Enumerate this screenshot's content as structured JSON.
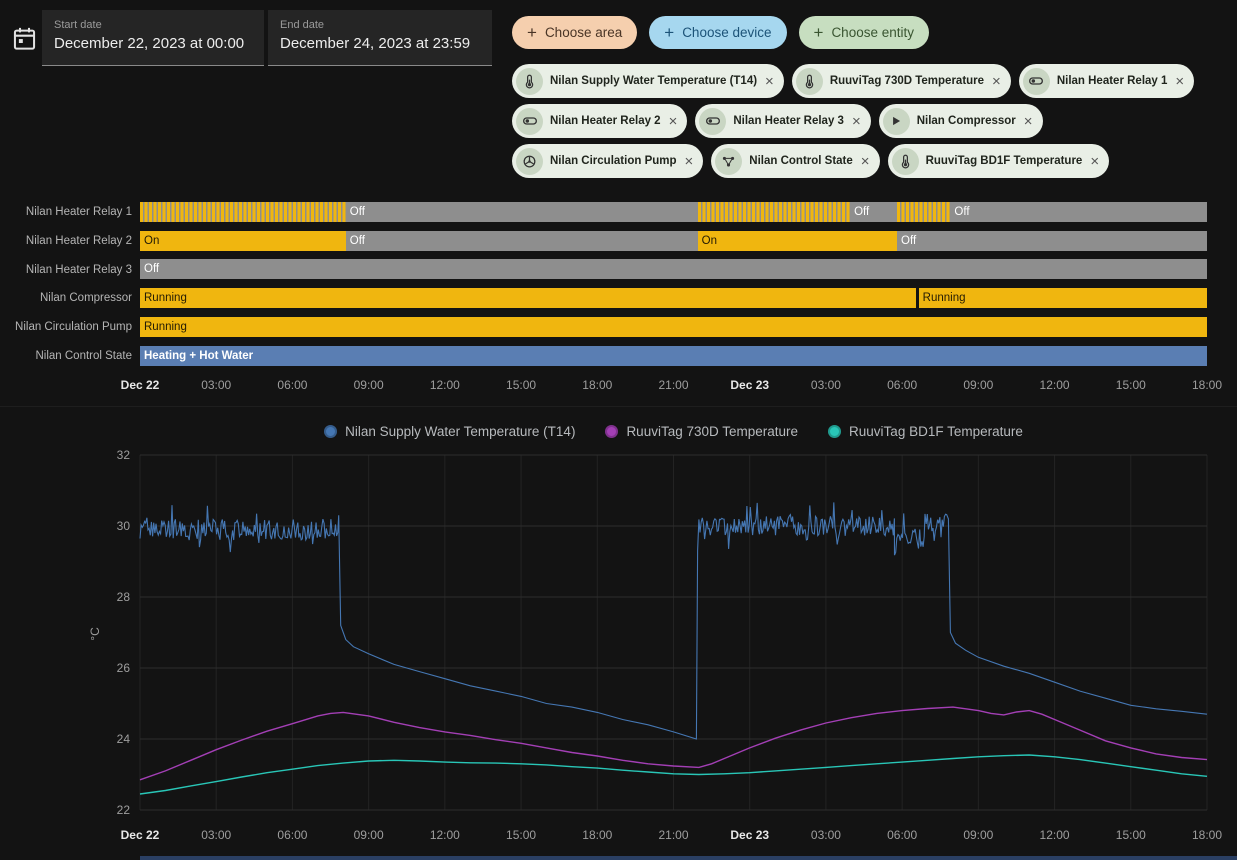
{
  "header": {
    "start_date": {
      "label": "Start date",
      "value": "December 22, 2023 at 00:00"
    },
    "end_date": {
      "label": "End date",
      "value": "December 24, 2023 at 23:59"
    },
    "choose_buttons": [
      {
        "label": "Choose area",
        "bg": "#f5cfae",
        "fg": "#4a3526"
      },
      {
        "label": "Choose device",
        "bg": "#a6d7ef",
        "fg": "#1c5378"
      },
      {
        "label": "Choose entity",
        "bg": "#c7dec0",
        "fg": "#3a5531"
      }
    ],
    "entity_chips": {
      "rows": [
        [
          {
            "label": "Nilan Supply Water Temperature (T14)",
            "icon": "thermometer"
          },
          {
            "label": "RuuviTag 730D Temperature",
            "icon": "thermometer"
          },
          {
            "label": "Nilan Heater Relay 1",
            "icon": "toggle"
          }
        ],
        [
          {
            "label": "Nilan Heater Relay 2",
            "icon": "toggle"
          },
          {
            "label": "Nilan Heater Relay 3",
            "icon": "toggle"
          },
          {
            "label": "Nilan Compressor",
            "icon": "play"
          }
        ],
        [
          {
            "label": "Nilan Circulation Pump",
            "icon": "pump"
          },
          {
            "label": "Nilan Control State",
            "icon": "state"
          },
          {
            "label": "RuuviTag BD1F Temperature",
            "icon": "thermometer"
          }
        ]
      ]
    }
  },
  "chart_data": [
    {
      "type": "timeline",
      "x_unit": "hours_from_2023-12-22_00:00",
      "x_range": [
        0,
        42
      ],
      "x_ticks": [
        {
          "h": 0,
          "label": "Dec 22",
          "emphasis": true
        },
        {
          "h": 3,
          "label": "03:00"
        },
        {
          "h": 6,
          "label": "06:00"
        },
        {
          "h": 9,
          "label": "09:00"
        },
        {
          "h": 12,
          "label": "12:00"
        },
        {
          "h": 15,
          "label": "15:00"
        },
        {
          "h": 18,
          "label": "18:00"
        },
        {
          "h": 21,
          "label": "21:00"
        },
        {
          "h": 24,
          "label": "Dec 23",
          "emphasis": true
        },
        {
          "h": 27,
          "label": "03:00"
        },
        {
          "h": 30,
          "label": "06:00"
        },
        {
          "h": 33,
          "label": "09:00"
        },
        {
          "h": 36,
          "label": "12:00"
        },
        {
          "h": 39,
          "label": "15:00"
        },
        {
          "h": 42,
          "label": "18:00"
        }
      ],
      "rows": [
        {
          "label": "Nilan Heater Relay 1",
          "segments": [
            {
              "from": 0,
              "to": 8.1,
              "state": "cycling"
            },
            {
              "from": 8.1,
              "to": 21.95,
              "state": "off",
              "label": "Off"
            },
            {
              "from": 21.95,
              "to": 27.95,
              "state": "cycling"
            },
            {
              "from": 27.95,
              "to": 29.8,
              "state": "off",
              "label": "Off"
            },
            {
              "from": 29.8,
              "to": 31.9,
              "state": "cycling"
            },
            {
              "from": 31.9,
              "to": 42,
              "state": "off",
              "label": "Off"
            }
          ]
        },
        {
          "label": "Nilan Heater Relay 2",
          "segments": [
            {
              "from": 0,
              "to": 8.1,
              "state": "on",
              "label": "On"
            },
            {
              "from": 8.1,
              "to": 21.95,
              "state": "off",
              "label": "Off"
            },
            {
              "from": 21.95,
              "to": 29.8,
              "state": "on",
              "label": "On"
            },
            {
              "from": 29.8,
              "to": 42,
              "state": "off",
              "label": "Off"
            }
          ]
        },
        {
          "label": "Nilan Heater Relay 3",
          "segments": [
            {
              "from": 0,
              "to": 42,
              "state": "off",
              "label": "Off"
            }
          ]
        },
        {
          "label": "Nilan Compressor",
          "segments": [
            {
              "from": 0,
              "to": 30.55,
              "state": "running",
              "label": "Running"
            },
            {
              "from": 30.65,
              "to": 42,
              "state": "running",
              "label": "Running"
            }
          ]
        },
        {
          "label": "Nilan Circulation Pump",
          "segments": [
            {
              "from": 0,
              "to": 42,
              "state": "running",
              "label": "Running"
            }
          ]
        },
        {
          "label": "Nilan Control State",
          "segments": [
            {
              "from": 0,
              "to": 42,
              "state": "heating_hot_water",
              "label": "Heating + Hot Water"
            }
          ]
        }
      ],
      "state_styles": {
        "on": {
          "color": "#f0b60f",
          "text": "#241c04"
        },
        "running": {
          "color": "#f0b60f",
          "text": "#241c04"
        },
        "off": {
          "color": "#8e8e8e",
          "text": "#ffffff"
        },
        "cycling": {
          "pattern": "stripes",
          "colors": [
            "#f0b60f",
            "#8e8e8e"
          ]
        },
        "heating_hot_water": {
          "color": "#5a7eb3",
          "text": "#ffffff"
        }
      }
    },
    {
      "type": "line",
      "ylabel": "°C",
      "ylim": [
        22,
        32
      ],
      "y_ticks": [
        22,
        24,
        26,
        28,
        30,
        32
      ],
      "x_range": [
        0,
        42
      ],
      "grid": true,
      "legend_position": "top",
      "x_ticks": [
        {
          "h": 0,
          "label": "Dec 22",
          "emphasis": true
        },
        {
          "h": 3,
          "label": "03:00"
        },
        {
          "h": 6,
          "label": "06:00"
        },
        {
          "h": 9,
          "label": "09:00"
        },
        {
          "h": 12,
          "label": "12:00"
        },
        {
          "h": 15,
          "label": "15:00"
        },
        {
          "h": 18,
          "label": "18:00"
        },
        {
          "h": 21,
          "label": "21:00"
        },
        {
          "h": 24,
          "label": "Dec 23",
          "emphasis": true
        },
        {
          "h": 27,
          "label": "03:00"
        },
        {
          "h": 30,
          "label": "06:00"
        },
        {
          "h": 33,
          "label": "09:00"
        },
        {
          "h": 36,
          "label": "12:00"
        },
        {
          "h": 39,
          "label": "15:00"
        },
        {
          "h": 42,
          "label": "18:00"
        }
      ],
      "series": [
        {
          "name": "Nilan Supply Water Temperature (T14)",
          "color": "#4577b3",
          "segments": [
            {
              "type": "noise",
              "from": 0,
              "to": 7.8,
              "base": 29.9,
              "amplitude": 0.3
            },
            {
              "type": "points",
              "pts": [
                [
                  7.82,
                  30.3
                ],
                [
                  7.9,
                  27.2
                ],
                [
                  8.1,
                  26.8
                ],
                [
                  8.4,
                  26.6
                ],
                [
                  9,
                  26.4
                ],
                [
                  10,
                  26.1
                ],
                [
                  11,
                  25.9
                ],
                [
                  12,
                  25.7
                ],
                [
                  13,
                  25.5
                ],
                [
                  14,
                  25.35
                ],
                [
                  15,
                  25.2
                ],
                [
                  16,
                  25.0
                ],
                [
                  17,
                  24.9
                ],
                [
                  18,
                  24.75
                ],
                [
                  19,
                  24.55
                ],
                [
                  20,
                  24.4
                ],
                [
                  21,
                  24.2
                ],
                [
                  21.9,
                  24.0
                ]
              ]
            },
            {
              "type": "points",
              "pts": [
                [
                  21.95,
                  29.3
                ]
              ]
            },
            {
              "type": "noise",
              "from": 22,
              "to": 29.7,
              "base": 30.0,
              "amplitude": 0.28
            },
            {
              "type": "noise",
              "from": 29.7,
              "to": 30.9,
              "base": 29.7,
              "amplitude": 0.3
            },
            {
              "type": "noise",
              "from": 30.9,
              "to": 31.8,
              "base": 30.1,
              "amplitude": 0.25
            },
            {
              "type": "points",
              "pts": [
                [
                  31.82,
                  30.2
                ],
                [
                  31.9,
                  27.0
                ],
                [
                  32.1,
                  26.7
                ],
                [
                  32.5,
                  26.5
                ],
                [
                  33,
                  26.3
                ],
                [
                  34,
                  26.05
                ],
                [
                  35,
                  25.85
                ],
                [
                  36,
                  25.6
                ],
                [
                  37,
                  25.35
                ],
                [
                  38,
                  25.15
                ],
                [
                  39,
                  24.95
                ],
                [
                  40,
                  24.85
                ],
                [
                  41,
                  24.78
                ],
                [
                  42,
                  24.7
                ]
              ]
            }
          ]
        },
        {
          "name": "RuuviTag 730D Temperature",
          "color": "#a33fb5",
          "segments": [
            {
              "type": "points",
              "pts": [
                [
                  0,
                  22.85
                ],
                [
                  1,
                  23.1
                ],
                [
                  2,
                  23.4
                ],
                [
                  3,
                  23.7
                ],
                [
                  4,
                  23.97
                ],
                [
                  5,
                  24.22
                ],
                [
                  6,
                  24.43
                ],
                [
                  7,
                  24.65
                ],
                [
                  7.5,
                  24.72
                ],
                [
                  8,
                  24.75
                ],
                [
                  9,
                  24.65
                ],
                [
                  10,
                  24.47
                ],
                [
                  11,
                  24.32
                ],
                [
                  12,
                  24.2
                ],
                [
                  13,
                  24.1
                ],
                [
                  14,
                  23.98
                ],
                [
                  15,
                  23.88
                ],
                [
                  16,
                  23.75
                ],
                [
                  17,
                  23.62
                ],
                [
                  18,
                  23.52
                ],
                [
                  19,
                  23.4
                ],
                [
                  20,
                  23.3
                ],
                [
                  21,
                  23.24
                ],
                [
                  22,
                  23.2
                ],
                [
                  22.5,
                  23.3
                ],
                [
                  23,
                  23.45
                ],
                [
                  24,
                  23.75
                ],
                [
                  25,
                  24.02
                ],
                [
                  26,
                  24.25
                ],
                [
                  27,
                  24.45
                ],
                [
                  28,
                  24.6
                ],
                [
                  29,
                  24.72
                ],
                [
                  30,
                  24.8
                ],
                [
                  31,
                  24.86
                ],
                [
                  32,
                  24.9
                ],
                [
                  32.5,
                  24.85
                ],
                [
                  33,
                  24.8
                ],
                [
                  33.5,
                  24.72
                ],
                [
                  34,
                  24.68
                ],
                [
                  34.5,
                  24.76
                ],
                [
                  35,
                  24.8
                ],
                [
                  35.5,
                  24.7
                ],
                [
                  36,
                  24.55
                ],
                [
                  37,
                  24.25
                ],
                [
                  38,
                  23.95
                ],
                [
                  39,
                  23.75
                ],
                [
                  40,
                  23.58
                ],
                [
                  41,
                  23.48
                ],
                [
                  42,
                  23.42
                ]
              ]
            }
          ]
        },
        {
          "name": "RuuviTag BD1F Temperature",
          "color": "#29c6b7",
          "segments": [
            {
              "type": "points",
              "pts": [
                [
                  0,
                  22.45
                ],
                [
                  1,
                  22.55
                ],
                [
                  2,
                  22.68
                ],
                [
                  3,
                  22.8
                ],
                [
                  4,
                  22.93
                ],
                [
                  5,
                  23.05
                ],
                [
                  6,
                  23.15
                ],
                [
                  7,
                  23.25
                ],
                [
                  8,
                  23.32
                ],
                [
                  9,
                  23.38
                ],
                [
                  10,
                  23.4
                ],
                [
                  11,
                  23.38
                ],
                [
                  12,
                  23.35
                ],
                [
                  13,
                  23.33
                ],
                [
                  14,
                  23.32
                ],
                [
                  15,
                  23.3
                ],
                [
                  16,
                  23.27
                ],
                [
                  17,
                  23.22
                ],
                [
                  18,
                  23.18
                ],
                [
                  19,
                  23.12
                ],
                [
                  20,
                  23.07
                ],
                [
                  21,
                  23.02
                ],
                [
                  22,
                  23.0
                ],
                [
                  23,
                  23.02
                ],
                [
                  24,
                  23.05
                ],
                [
                  25,
                  23.1
                ],
                [
                  26,
                  23.15
                ],
                [
                  27,
                  23.2
                ],
                [
                  28,
                  23.25
                ],
                [
                  29,
                  23.3
                ],
                [
                  30,
                  23.35
                ],
                [
                  31,
                  23.4
                ],
                [
                  32,
                  23.45
                ],
                [
                  33,
                  23.5
                ],
                [
                  34,
                  23.53
                ],
                [
                  35,
                  23.55
                ],
                [
                  36,
                  23.5
                ],
                [
                  37,
                  23.42
                ],
                [
                  38,
                  23.32
                ],
                [
                  39,
                  23.22
                ],
                [
                  40,
                  23.12
                ],
                [
                  41,
                  23.02
                ],
                [
                  42,
                  22.95
                ]
              ]
            }
          ]
        }
      ]
    }
  ]
}
